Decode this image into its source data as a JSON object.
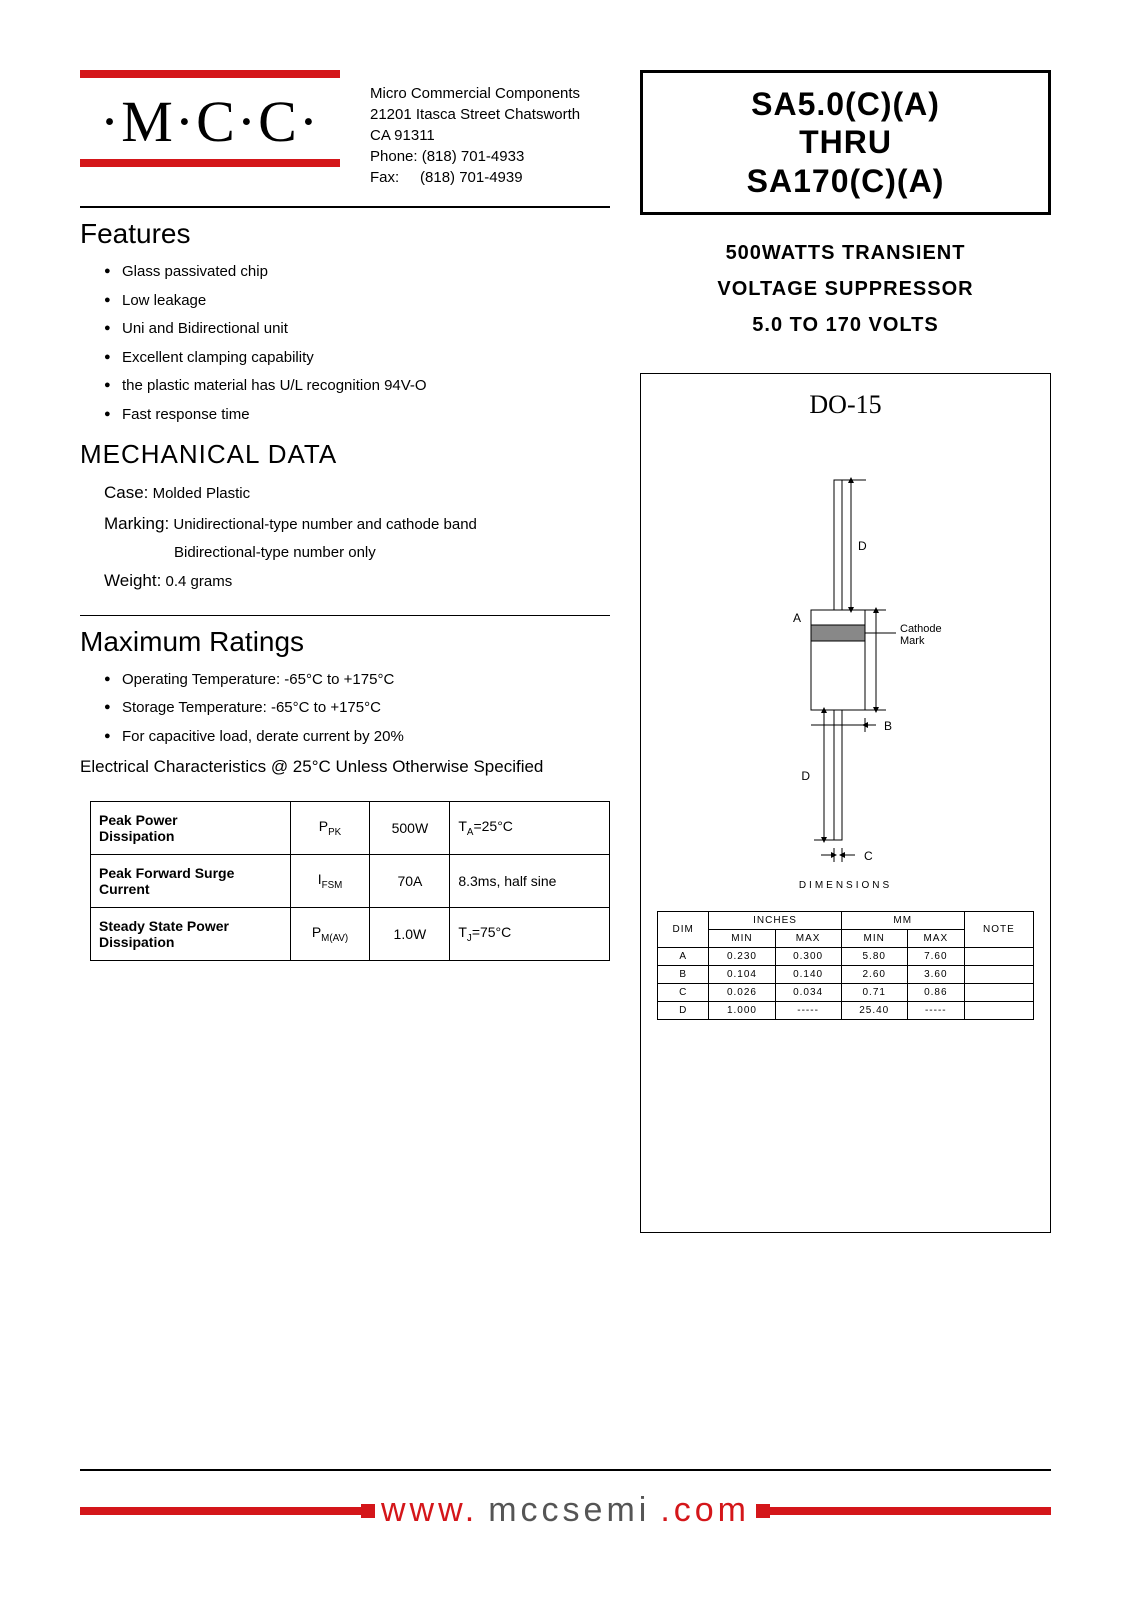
{
  "logo": {
    "text": "·M·C·C·"
  },
  "company": {
    "name": "Micro Commercial Components",
    "address1": "21201 Itasca Street Chatsworth",
    "address2": "CA 91311",
    "phone": "Phone: (818) 701-4933",
    "fax": "Fax:     (818) 701-4939"
  },
  "part_title": {
    "line1": "SA5.0(C)(A)",
    "line2": "THRU",
    "line3": "SA170(C)(A)"
  },
  "tagline": {
    "line1": "500WATTS TRANSIENT",
    "line2": "VOLTAGE SUPPRESSOR",
    "line3": "5.0 TO 170 VOLTS"
  },
  "features": {
    "heading": "Features",
    "items": [
      "Glass passivated chip",
      "Low leakage",
      "Uni and Bidirectional unit",
      "Excellent clamping capability",
      "the plastic material has U/L recognition 94V-O",
      "Fast response time"
    ]
  },
  "mechanical": {
    "heading": "MECHANICAL DATA",
    "case_label": "Case:",
    "case_value": "Molded Plastic",
    "marking_label": "Marking:",
    "marking_value1": "Unidirectional-type number and cathode band",
    "marking_value2": "Bidirectional-type number only",
    "weight_label": "Weight:",
    "weight_value": "0.4 grams"
  },
  "ratings": {
    "heading": "Maximum Ratings",
    "items_html": [
      "Operating Temperature: -65°C to +175°C",
      "Storage Temperature: -65°C to +175°C",
      "For capacitive load, derate current by 20%"
    ],
    "elec_note": "Electrical Characteristics @ 25°C Unless Otherwise Specified"
  },
  "char_table": {
    "rows": [
      {
        "name_html": "<b>Peak Power</b><br>Dissipation",
        "sym": "P<sub>PK</sub>",
        "val": "500W",
        "cond": "T<sub>A</sub>=25°C"
      },
      {
        "name_html": "<b>Peak Forward Surge<br>Current</b>",
        "sym": "I<sub>FSM</sub>",
        "val": "70A",
        "cond": "8.3ms, half sine"
      },
      {
        "name_html": "<b>Steady State Power<br>Dissipation</b>",
        "sym": "P<sub>M(AV)</sub>",
        "val": "1.0W",
        "cond": "T<sub>J</sub>=75°C"
      }
    ]
  },
  "package": {
    "name": "DO-15",
    "cathode_label": "Cathode\nMark",
    "labels": {
      "A": "A",
      "B": "B",
      "C": "C",
      "D": "D"
    }
  },
  "dimensions": {
    "caption": "DIMENSIONS",
    "header": {
      "dim": "DIM",
      "inches": "INCHES",
      "mm": "MM",
      "note": "NOTE",
      "min": "MIN",
      "max": "MAX"
    },
    "rows": [
      {
        "dim": "A",
        "in_min": "0.230",
        "in_max": "0.300",
        "mm_min": "5.80",
        "mm_max": "7.60",
        "note": ""
      },
      {
        "dim": "B",
        "in_min": "0.104",
        "in_max": "0.140",
        "mm_min": "2.60",
        "mm_max": "3.60",
        "note": ""
      },
      {
        "dim": "C",
        "in_min": "0.026",
        "in_max": "0.034",
        "mm_min": "0.71",
        "mm_max": "0.86",
        "note": ""
      },
      {
        "dim": "D",
        "in_min": "1.000",
        "in_max": "-----",
        "mm_min": "25.40",
        "mm_max": "-----",
        "note": ""
      }
    ]
  },
  "footer": {
    "www": "www.",
    "domain": "mccsemi",
    "tld": ".com"
  },
  "colors": {
    "brand_red": "#d4161a",
    "text_grey": "#555555",
    "black": "#000000",
    "bg": "#ffffff"
  }
}
